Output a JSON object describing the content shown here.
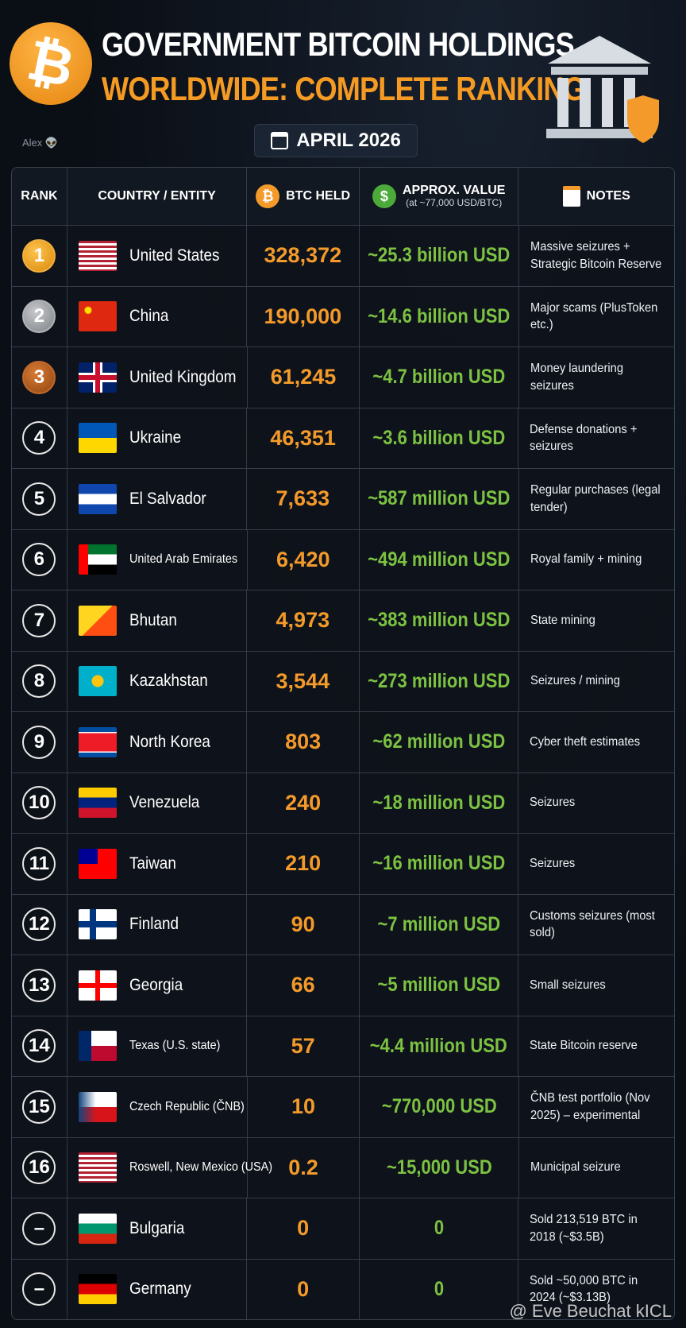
{
  "header": {
    "title_line1": "GOVERNMENT BITCOIN HOLDINGS",
    "title_line2": "WORLDWIDE: COMPLETE RANKING",
    "date": "APRIL 2026",
    "author": "Alex 👽",
    "btc_symbol": "₿",
    "usd_symbol": "$"
  },
  "table": {
    "headers": {
      "rank": "RANK",
      "country": "COUNTRY / ENTITY",
      "btc": "BTC HELD",
      "value": "APPROX. VALUE",
      "value_note": "(at ~77,000 USD/BTC)",
      "notes": "NOTES"
    },
    "rows": [
      [
        "1",
        "United States",
        "328,372",
        "~25.3 billion USD",
        "Massive seizures + Strategic Bitcoin Reserve"
      ],
      [
        "2",
        "China",
        "190,000",
        "~14.6 billion USD",
        "Major scams (PlusToken etc.)"
      ],
      [
        "3",
        "United Kingdom",
        "61,245",
        "~4.7 billion USD",
        "Money laundering seizures"
      ],
      [
        "4",
        "Ukraine",
        "46,351",
        "~3.6 billion USD",
        "Defense donations + seizures"
      ],
      [
        "5",
        "El Salvador",
        "7,633",
        "~587 million USD",
        "Regular purchases (legal tender)"
      ],
      [
        "6",
        "United Arab Emirates",
        "6,420",
        "~494 million USD",
        "Royal family + mining"
      ],
      [
        "7",
        "Bhutan",
        "4,973",
        "~383 million USD",
        "State mining"
      ],
      [
        "8",
        "Kazakhstan",
        "3,544",
        "~273 million USD",
        "Seizures / mining"
      ],
      [
        "9",
        "North Korea",
        "803",
        "~62 million USD",
        "Cyber theft estimates"
      ],
      [
        "10",
        "Venezuela",
        "240",
        "~18 million USD",
        "Seizures"
      ],
      [
        "11",
        "Taiwan",
        "210",
        "~16 million USD",
        "Seizures"
      ],
      [
        "12",
        "Finland",
        "90",
        "~7 million USD",
        "Customs seizures (most sold)"
      ],
      [
        "13",
        "Georgia",
        "66",
        "~5 million USD",
        "Small seizures"
      ],
      [
        "14",
        "Texas (U.S. state)",
        "57",
        "~4.4 million USD",
        "State Bitcoin reserve"
      ],
      [
        "15",
        "Czech Republic (ČNB)",
        "10",
        "~770,000 USD",
        "ČNB test portfolio (Nov 2025) – experimental"
      ],
      [
        "16",
        "Roswell, New Mexico (USA)",
        "0.2",
        "~15,000 USD",
        "Municipal seizure"
      ],
      [
        "–",
        "Bulgaria",
        "0",
        "0",
        "Sold 213,519 BTC in 2018 (~$3.5B)"
      ],
      [
        "–",
        "Germany",
        "0",
        "0",
        "Sold ~50,000 BTC in 2024 (~$3.13B)"
      ]
    ]
  },
  "footer": {
    "watermark": "@ Eve Beuchat kICL"
  }
}
